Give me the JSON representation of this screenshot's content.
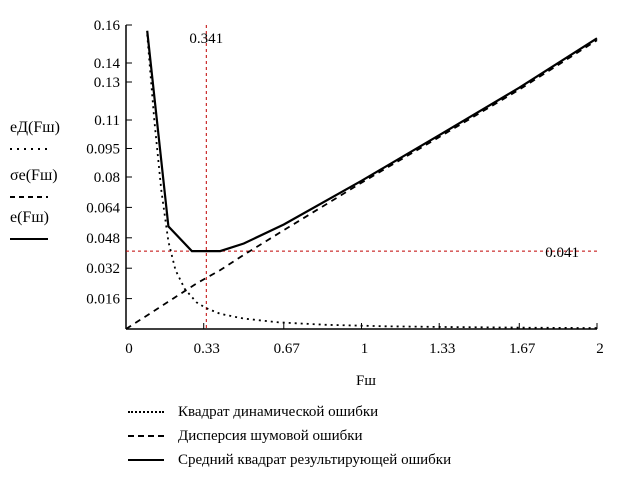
{
  "chart_data": {
    "type": "line",
    "xlabel": "Fш",
    "xlim": [
      0,
      2
    ],
    "ylim": [
      0,
      0.16
    ],
    "x_ticks": [
      "0",
      "0.33",
      "0.67",
      "1",
      "1.33",
      "1.67",
      "2"
    ],
    "x_tick_values": [
      0,
      0.33,
      0.67,
      1,
      1.33,
      1.67,
      2
    ],
    "y_ticks": [
      "0.016",
      "0.032",
      "0.048",
      "0.064",
      "0.08",
      "0.095",
      "0.11",
      "0.13",
      "0.14",
      "0.16"
    ],
    "y_tick_values": [
      0.016,
      0.032,
      0.048,
      0.064,
      0.08,
      0.095,
      0.11,
      0.13,
      0.14,
      0.16
    ],
    "ylabels": {
      "dynamic": "eД(Fш)",
      "noise": "σe(Fш)",
      "total": "e(Fш)"
    },
    "markers": {
      "x_value": 0.341,
      "x_label": "0.341",
      "y_value": 0.041,
      "y_label": "0.041"
    },
    "series": [
      {
        "name": "Квадрат динамической ошибки",
        "style": "dotted",
        "x": [
          0.09,
          0.12,
          0.15,
          0.18,
          0.21,
          0.25,
          0.3,
          0.34,
          0.4,
          0.5,
          0.65,
          0.85,
          1.1,
          1.4,
          1.7,
          2.0
        ],
        "y": [
          0.155,
          0.11,
          0.073,
          0.046,
          0.031,
          0.021,
          0.014,
          0.011,
          0.008,
          0.0055,
          0.0035,
          0.0022,
          0.0014,
          0.001,
          0.0007,
          0.0005
        ]
      },
      {
        "name": "Дисперсия шумовой ошибки",
        "style": "dashed",
        "x": [
          0,
          0.1,
          0.2,
          0.3,
          0.4,
          0.5,
          0.67,
          1.0,
          1.33,
          1.67,
          2.0
        ],
        "y": [
          0.0,
          0.008,
          0.016,
          0.024,
          0.031,
          0.039,
          0.052,
          0.077,
          0.101,
          0.126,
          0.152
        ]
      },
      {
        "name": "Средний квадрат результирующей ошибки",
        "style": "solid",
        "x": [
          0.09,
          0.18,
          0.28,
          0.34,
          0.4,
          0.5,
          0.67,
          1.0,
          1.33,
          1.67,
          2.0
        ],
        "y": [
          0.157,
          0.054,
          0.041,
          0.041,
          0.041,
          0.045,
          0.055,
          0.078,
          0.102,
          0.127,
          0.153
        ]
      }
    ]
  }
}
